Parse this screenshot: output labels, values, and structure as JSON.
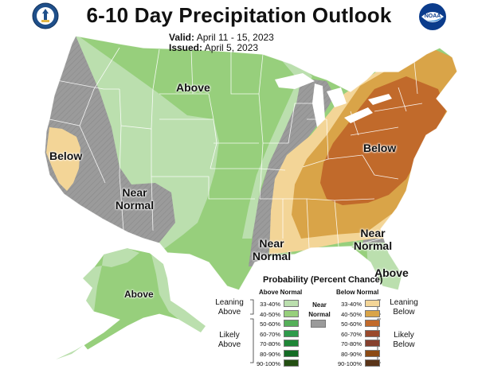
{
  "title": "6-10 Day Precipitation Outlook",
  "valid": {
    "label": "Valid:",
    "value": "April 11 - 15, 2023"
  },
  "issued": {
    "label": "Issued:",
    "value": "April 5, 2023"
  },
  "logos": {
    "left": "department-of-commerce-seal",
    "right": "noaa-logo"
  },
  "regions": [
    {
      "label": "Above",
      "category": "above",
      "probability": "33-50%",
      "area": "northern and central US"
    },
    {
      "label": "Below",
      "category": "below",
      "probability": "33-40%",
      "area": "central California"
    },
    {
      "label": "Near Normal",
      "category": "near",
      "area": "southwest US"
    },
    {
      "label": "Near Normal",
      "category": "near",
      "area": "Mississippi valley"
    },
    {
      "label": "Below",
      "category": "below",
      "probability": "33-60%",
      "area": "eastern US"
    },
    {
      "label": "Near Normal",
      "category": "near",
      "area": "Georgia coast"
    },
    {
      "label": "Above",
      "category": "above",
      "probability": "33-40%",
      "area": "Florida"
    },
    {
      "label": "Above",
      "category": "above",
      "probability": "33-50%",
      "area": "Alaska"
    }
  ],
  "legend": {
    "title": "Probability (Percent Chance)",
    "above_header": "Above Normal",
    "below_header": "Below Normal",
    "near_label": "Near Normal",
    "leaning_above": "Leaning Above",
    "likely_above": "Likely Above",
    "leaning_below": "Leaning Below",
    "likely_below": "Likely Below",
    "above": [
      {
        "range": "33-40%",
        "color": "#bbdfae"
      },
      {
        "range": "40-50%",
        "color": "#97cf7c"
      },
      {
        "range": "50-60%",
        "color": "#56b05a"
      },
      {
        "range": "60-70%",
        "color": "#2e9a4a"
      },
      {
        "range": "70-80%",
        "color": "#1f8637"
      },
      {
        "range": "80-90%",
        "color": "#146b25"
      },
      {
        "range": "90-100%",
        "color": "#234f12"
      }
    ],
    "below": [
      {
        "range": "33-40%",
        "color": "#f3d597"
      },
      {
        "range": "40-50%",
        "color": "#d9a448"
      },
      {
        "range": "50-60%",
        "color": "#c16a2b"
      },
      {
        "range": "60-70%",
        "color": "#9a4a2c"
      },
      {
        "range": "70-80%",
        "color": "#86402d"
      },
      {
        "range": "80-90%",
        "color": "#8c4a14"
      },
      {
        "range": "90-100%",
        "color": "#5a3418"
      }
    ],
    "near_color": "#9b9b9b"
  },
  "colors": {
    "above_33": "#bbdfae",
    "above_40": "#97cf7c",
    "below_33": "#f3d597",
    "below_40": "#d9a448",
    "below_50": "#c16a2b",
    "near": "#9b9b9b",
    "border": "#ffffff"
  }
}
